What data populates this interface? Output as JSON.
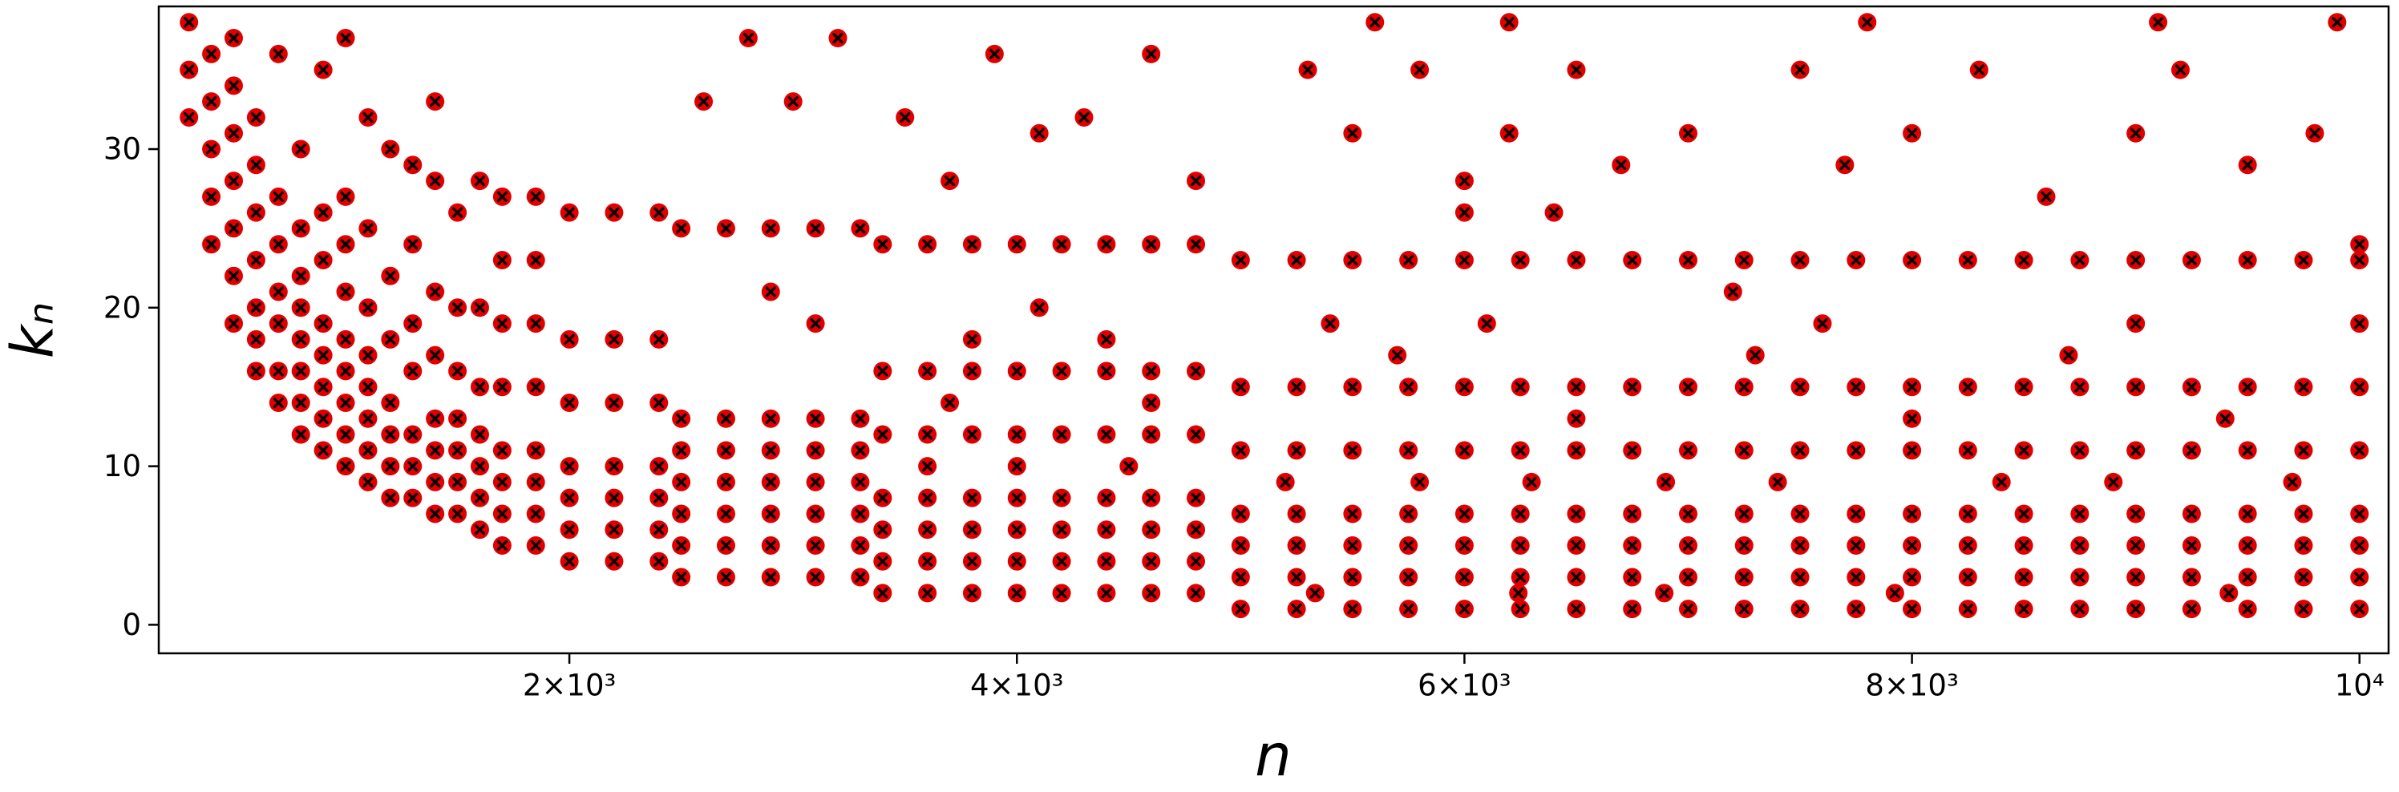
{
  "chart_data": {
    "type": "scatter",
    "x_label": "n",
    "y_label": "kₙ",
    "color": "#e00000",
    "xlim": [
      165,
      10130
    ],
    "ylim": [
      -1.8,
      39
    ],
    "xticks": [
      {
        "value": 2000,
        "label": "2×10³"
      },
      {
        "value": 4000,
        "label": "4×10³"
      },
      {
        "value": 6000,
        "label": "6×10³"
      },
      {
        "value": 8000,
        "label": "8×10³"
      },
      {
        "value": 10000,
        "label": "10⁴"
      }
    ],
    "yticks": [
      0,
      10,
      20,
      30
    ],
    "series": [
      {
        "x": [
          5000,
          5250,
          5500,
          5750,
          6000,
          6250,
          6500,
          6750,
          7000,
          7250,
          7500,
          7750,
          8000,
          8250,
          8500,
          8750,
          9000,
          9250,
          9500,
          9750,
          10000
        ],
        "values": [
          1,
          1,
          1,
          1,
          1,
          1,
          1,
          1,
          1,
          1,
          1,
          1,
          1,
          1,
          1,
          1,
          1,
          1,
          1,
          1,
          1
        ]
      },
      {
        "x": [
          5000,
          5250,
          5500,
          5750,
          6000,
          6250,
          6500,
          6750,
          7000,
          7250,
          7500,
          7750,
          8000,
          8250,
          8500,
          8750,
          9000,
          9250,
          9500,
          9750,
          10000
        ],
        "values": [
          3,
          3,
          3,
          3,
          3,
          3,
          3,
          3,
          3,
          3,
          3,
          3,
          3,
          3,
          3,
          3,
          3,
          3,
          3,
          3,
          3
        ]
      },
      {
        "x": [
          5000,
          5250,
          5500,
          5750,
          6000,
          6250,
          6500,
          6750,
          7000,
          7250,
          7500,
          7750,
          8000,
          8250,
          8500,
          8750,
          9000,
          9250,
          9500,
          9750,
          10000
        ],
        "values": [
          5,
          5,
          5,
          5,
          5,
          5,
          5,
          5,
          5,
          5,
          5,
          5,
          5,
          5,
          5,
          5,
          5,
          5,
          5,
          5,
          5
        ]
      },
      {
        "x": [
          5000,
          5250,
          5500,
          5750,
          6000,
          6250,
          6500,
          6750,
          7000,
          7250,
          7500,
          7750,
          8000,
          8250,
          8500,
          8750,
          9000,
          9250,
          9500,
          9750,
          10000
        ],
        "values": [
          7,
          7,
          7,
          7,
          7,
          7,
          7,
          7,
          7,
          7,
          7,
          7,
          7,
          7,
          7,
          7,
          7,
          7,
          7,
          7,
          7
        ]
      },
      {
        "x": [
          5000,
          5250,
          5500,
          5750,
          6000,
          6250,
          6500,
          6750,
          7000,
          7250,
          7500,
          7750,
          8000,
          8250,
          8500,
          8750,
          9000,
          9250,
          9500,
          9750,
          10000
        ],
        "values": [
          11,
          11,
          11,
          11,
          11,
          11,
          11,
          11,
          11,
          11,
          11,
          11,
          11,
          11,
          11,
          11,
          11,
          11,
          11,
          11,
          11
        ]
      },
      {
        "x": [
          5000,
          5250,
          5500,
          5750,
          6000,
          6250,
          6500,
          6750,
          7000,
          7250,
          7500,
          7750,
          8000,
          8250,
          8500,
          8750,
          9000,
          9250,
          9500,
          9750,
          10000
        ],
        "values": [
          15,
          15,
          15,
          15,
          15,
          15,
          15,
          15,
          15,
          15,
          15,
          15,
          15,
          15,
          15,
          15,
          15,
          15,
          15,
          15,
          15
        ]
      },
      {
        "x": [
          5000,
          5250,
          5500,
          5750,
          6000,
          6250,
          6500,
          6750,
          7000,
          7250,
          7500,
          7750,
          8000,
          8250,
          8500,
          8750,
          9000,
          9250,
          9500,
          9750,
          10000
        ],
        "values": [
          23,
          23,
          23,
          23,
          23,
          23,
          23,
          23,
          23,
          23,
          23,
          23,
          23,
          23,
          23,
          23,
          23,
          23,
          23,
          23,
          23
        ]
      },
      {
        "x": [
          3400,
          3600,
          3800,
          4000,
          4200,
          4400,
          4600,
          4800
        ],
        "values": [
          2,
          2,
          2,
          2,
          2,
          2,
          2,
          2
        ]
      },
      {
        "x": [
          3400,
          3600,
          3800,
          4000,
          4200,
          4400,
          4600,
          4800
        ],
        "values": [
          4,
          4,
          4,
          4,
          4,
          4,
          4,
          4
        ]
      },
      {
        "x": [
          3400,
          3600,
          3800,
          4000,
          4200,
          4400,
          4600,
          4800
        ],
        "values": [
          6,
          6,
          6,
          6,
          6,
          6,
          6,
          6
        ]
      },
      {
        "x": [
          3400,
          3600,
          3800,
          4000,
          4200,
          4400,
          4600,
          4800
        ],
        "values": [
          8,
          8,
          8,
          8,
          8,
          8,
          8,
          8
        ]
      },
      {
        "x": [
          3400,
          3600,
          3800,
          4000,
          4200,
          4400,
          4600,
          4800
        ],
        "values": [
          12,
          12,
          12,
          12,
          12,
          12,
          12,
          12
        ]
      },
      {
        "x": [
          3400,
          3600,
          3800,
          4000,
          4200,
          4400,
          4600,
          4800
        ],
        "values": [
          16,
          16,
          16,
          16,
          16,
          16,
          16,
          16
        ]
      },
      {
        "x": [
          3400,
          3600,
          3800,
          4000,
          4200,
          4400,
          4600,
          4800
        ],
        "values": [
          24,
          24,
          24,
          24,
          24,
          24,
          24,
          24
        ]
      },
      {
        "x": [
          2500,
          2700,
          2900,
          3100,
          3300
        ],
        "values": [
          3,
          3,
          3,
          3,
          3
        ]
      },
      {
        "x": [
          2500,
          2700,
          2900,
          3100,
          3300
        ],
        "values": [
          5,
          5,
          5,
          5,
          5
        ]
      },
      {
        "x": [
          2500,
          2700,
          2900,
          3100,
          3300
        ],
        "values": [
          7,
          7,
          7,
          7,
          7
        ]
      },
      {
        "x": [
          2500,
          2700,
          2900,
          3100,
          3300
        ],
        "values": [
          9,
          9,
          9,
          9,
          9
        ]
      },
      {
        "x": [
          2500,
          2700,
          2900,
          3100,
          3300
        ],
        "values": [
          11,
          11,
          11,
          11,
          11
        ]
      },
      {
        "x": [
          2500,
          2700,
          2900,
          3100,
          3300
        ],
        "values": [
          13,
          13,
          13,
          13,
          13
        ]
      },
      {
        "x": [
          2500,
          2700,
          2900,
          3100,
          3300
        ],
        "values": [
          25,
          25,
          25,
          25,
          25
        ]
      },
      {
        "x": [
          2000,
          2200,
          2400,
          2000,
          2200,
          2400,
          2000,
          2200,
          2400,
          2000,
          2200,
          2400,
          2000,
          2200,
          2400,
          2000,
          2200,
          2400,
          2000,
          2200,
          2400
        ],
        "values": [
          4,
          4,
          4,
          6,
          6,
          6,
          8,
          8,
          8,
          10,
          10,
          10,
          14,
          14,
          14,
          18,
          18,
          18,
          26,
          26,
          26
        ]
      },
      {
        "x": [
          1700,
          1850,
          1700,
          1850,
          1700,
          1850,
          1700,
          1850,
          1700,
          1850,
          1700,
          1850,
          1700,
          1850,
          1700,
          1850
        ],
        "values": [
          5,
          5,
          7,
          7,
          9,
          9,
          11,
          11,
          15,
          15,
          19,
          19,
          23,
          23,
          27,
          27
        ]
      },
      {
        "x": [
          300,
          300,
          300,
          400,
          400,
          400,
          400,
          400,
          500,
          500,
          500,
          500,
          500,
          500,
          500,
          600,
          600,
          600,
          600,
          600,
          600,
          600,
          700,
          700,
          700,
          700,
          700,
          700,
          700,
          800,
          800,
          800,
          800,
          800,
          800,
          800,
          800,
          900,
          900,
          900,
          900,
          900,
          900,
          900,
          900,
          1000,
          1000,
          1000,
          1000,
          1000,
          1000,
          1000,
          1000,
          1000,
          1100,
          1100,
          1100,
          1100,
          1100,
          1100,
          1100,
          1100,
          1200,
          1200,
          1200,
          1200,
          1200,
          1200,
          1200,
          1300,
          1300,
          1300,
          1300,
          1300,
          1300,
          1300,
          1400,
          1400,
          1400,
          1400,
          1400,
          1400,
          1400,
          1400,
          1500,
          1500,
          1500,
          1500,
          1500,
          1500,
          1500,
          1600,
          1600,
          1600,
          1600,
          1600,
          1600,
          1600
        ],
        "values": [
          32,
          35,
          38,
          24,
          27,
          30,
          33,
          36,
          19,
          22,
          25,
          28,
          31,
          34,
          37,
          16,
          18,
          20,
          23,
          26,
          29,
          32,
          14,
          16,
          19,
          21,
          24,
          27,
          36,
          12,
          14,
          16,
          18,
          20,
          22,
          25,
          30,
          11,
          13,
          15,
          17,
          19,
          23,
          26,
          35,
          10,
          12,
          14,
          16,
          18,
          21,
          24,
          27,
          37,
          9,
          11,
          13,
          15,
          17,
          20,
          25,
          32,
          8,
          10,
          12,
          14,
          18,
          22,
          30,
          8,
          10,
          12,
          16,
          19,
          24,
          29,
          7,
          9,
          11,
          13,
          17,
          21,
          28,
          33,
          7,
          9,
          11,
          13,
          16,
          20,
          26,
          6,
          8,
          10,
          12,
          15,
          20,
          28
        ]
      },
      {
        "x": [
          2600,
          2800,
          3000,
          3200,
          2900,
          3100,
          3500,
          3700,
          3900,
          4100,
          4300,
          4600,
          4800,
          3800,
          4100,
          4400,
          4600,
          3600,
          4000,
          4500,
          3700,
          5300,
          5500,
          5800,
          6000,
          6200,
          6500,
          6700,
          7000,
          7200,
          7500,
          7700,
          8000,
          8300,
          8600,
          9000,
          9200,
          9500,
          9800,
          10000,
          5400,
          5700,
          6100,
          6500,
          6900,
          7300,
          7600,
          8000,
          8400,
          8700,
          9000,
          9400,
          9700,
          10000,
          5600,
          6200,
          7800,
          9100,
          9900,
          5200,
          5800,
          6300,
          7400,
          8900,
          5333,
          6241,
          6893,
          7924,
          9416,
          6000,
          6400
        ],
        "values": [
          33,
          37,
          33,
          37,
          21,
          19,
          32,
          28,
          36,
          31,
          32,
          36,
          28,
          18,
          20,
          18,
          14,
          10,
          10,
          10,
          14,
          35,
          31,
          35,
          28,
          31,
          35,
          29,
          31,
          21,
          35,
          29,
          31,
          35,
          27,
          31,
          35,
          29,
          31,
          24,
          19,
          17,
          19,
          13,
          9,
          17,
          19,
          13,
          9,
          17,
          19,
          13,
          9,
          19,
          38,
          38,
          38,
          38,
          38,
          9,
          9,
          9,
          9,
          9,
          2,
          2,
          2,
          2,
          2,
          26,
          26
        ]
      }
    ]
  }
}
